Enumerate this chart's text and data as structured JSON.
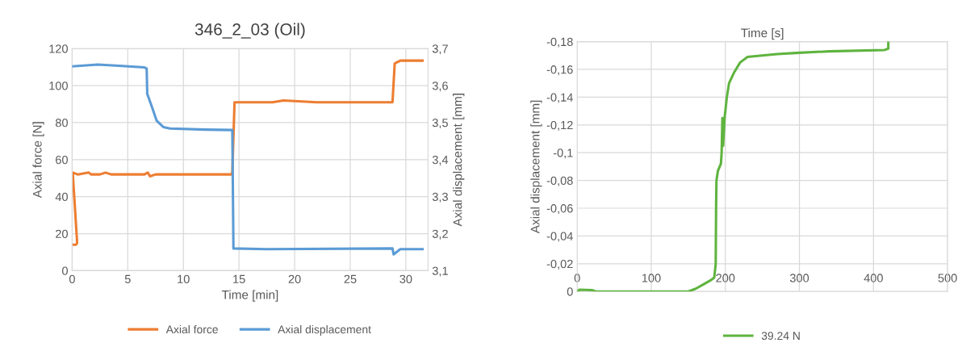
{
  "chart_data": [
    {
      "type": "line",
      "title": "346_2_03 (Oil)",
      "xlabel": "Time [min]",
      "ylabel": "Axial force [N]",
      "y2label": "Axial displacement [mm]",
      "xlim": [
        0,
        32
      ],
      "xticks": [
        0,
        5,
        10,
        15,
        20,
        25,
        30
      ],
      "ylim": [
        0,
        120
      ],
      "yticks": [
        0,
        20,
        40,
        60,
        80,
        100,
        120
      ],
      "y2lim": [
        3.1,
        3.7
      ],
      "y2ticks": [
        {
          "value": 3.1,
          "label": "3,1"
        },
        {
          "value": 3.2,
          "label": "3,2"
        },
        {
          "value": 3.3,
          "label": "3,3"
        },
        {
          "value": 3.4,
          "label": "3,4"
        },
        {
          "value": 3.5,
          "label": "3,5"
        },
        {
          "value": 3.6,
          "label": "3,6"
        },
        {
          "value": 3.7,
          "label": "3,7"
        }
      ],
      "grid": true,
      "legend": "bottom",
      "series": [
        {
          "name": "Axial force",
          "color": "#ed7d31",
          "x": [
            0,
            0.35,
            0.45,
            0.05,
            0.5,
            1.5,
            1.7,
            2.5,
            3,
            3.5,
            6.5,
            6.8,
            7.0,
            7.5,
            14.3,
            14.4,
            14.6,
            15,
            18,
            19,
            22,
            25,
            28.8,
            29.0,
            29.5,
            31.5
          ],
          "values": [
            14,
            14,
            15,
            53,
            52,
            53,
            52,
            52,
            53,
            52,
            52,
            53,
            51,
            52,
            52,
            53,
            91,
            91,
            91,
            92,
            91,
            91,
            91,
            112,
            113.5,
            113.5
          ]
        },
        {
          "name": "Axial displacement",
          "color": "#5b9bd5",
          "axis": "y2",
          "x": [
            0,
            2.3,
            4.5,
            6.5,
            6.7,
            6.75,
            7.2,
            7.6,
            8.2,
            8.8,
            12,
            14.4,
            14.5,
            17.5,
            28.8,
            28.9,
            29.5,
            31.5
          ],
          "values": [
            3.652,
            3.657,
            3.653,
            3.649,
            3.646,
            3.578,
            3.54,
            3.505,
            3.488,
            3.484,
            3.481,
            3.48,
            3.16,
            3.158,
            3.16,
            3.144,
            3.158,
            3.158
          ]
        }
      ]
    },
    {
      "type": "line",
      "xlabel": "Time [s]",
      "ylabel": "Axial displacement [mm]",
      "xlim": [
        0,
        500
      ],
      "xticks": [
        0,
        100,
        200,
        300,
        400,
        500
      ],
      "ylim": [
        0,
        -0.18
      ],
      "yticks": [
        {
          "value": 0,
          "label": "0"
        },
        {
          "value": -0.02,
          "label": "-0,02"
        },
        {
          "value": -0.04,
          "label": "-0,04"
        },
        {
          "value": -0.06,
          "label": "-0,06"
        },
        {
          "value": -0.08,
          "label": "-0,08"
        },
        {
          "value": -0.1,
          "label": "-0,1"
        },
        {
          "value": -0.12,
          "label": "-0,12"
        },
        {
          "value": -0.14,
          "label": "-0,14"
        },
        {
          "value": -0.16,
          "label": "-0,16"
        },
        {
          "value": -0.18,
          "label": "-0,18"
        }
      ],
      "grid": true,
      "legend": "bottom",
      "series": [
        {
          "name": "39.24 N",
          "color": "#5fb43f",
          "x": [
            0,
            3,
            20,
            25,
            60,
            120,
            130,
            150,
            160,
            170,
            180,
            185,
            187,
            187.5,
            188,
            190,
            194,
            195,
            196,
            197,
            199,
            202,
            205,
            212,
            220,
            230,
            250,
            270,
            300,
            340,
            415,
            420,
            420
          ],
          "values": [
            0,
            -0.0013,
            -0.001,
            0,
            0,
            0,
            0,
            0,
            -0.002,
            -0.005,
            -0.008,
            -0.01,
            -0.02,
            -0.06,
            -0.08,
            -0.087,
            -0.092,
            -0.1,
            -0.125,
            -0.105,
            -0.125,
            -0.14,
            -0.15,
            -0.158,
            -0.165,
            -0.169,
            -0.17,
            -0.171,
            -0.172,
            -0.173,
            -0.174,
            -0.175,
            -0.18
          ]
        }
      ]
    }
  ]
}
